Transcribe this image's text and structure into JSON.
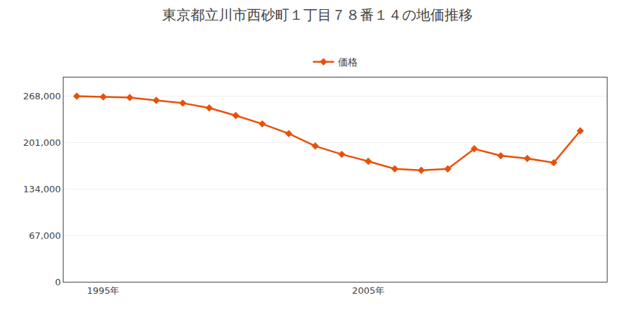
{
  "chart_data": {
    "type": "line",
    "title": "東京都立川市西砂町１丁目７８番１４の地価推移",
    "x": [
      1994,
      1995,
      1996,
      1997,
      1998,
      1999,
      2000,
      2001,
      2002,
      2003,
      2004,
      2005,
      2006,
      2007,
      2008,
      2009,
      2010,
      2011,
      2012,
      2013
    ],
    "series": [
      {
        "name": "価格",
        "color": "#e8500a",
        "marker": "diamond",
        "values": [
          268000,
          267000,
          266000,
          262000,
          258000,
          251000,
          240000,
          228000,
          214000,
          196000,
          184000,
          174000,
          163000,
          161000,
          163000,
          192000,
          182000,
          178000,
          172000,
          218000
        ]
      }
    ],
    "xlim": [
      1993.5,
      2014.0
    ],
    "xticks": [
      {
        "value": 1995,
        "label": "1995年"
      },
      {
        "value": 2005,
        "label": "2005年"
      }
    ],
    "ylim": [
      0,
      295000
    ],
    "yticks": [
      0,
      {
        "value": 67000,
        "label": "67,000"
      },
      {
        "value": 134000,
        "label": "134,000"
      },
      {
        "value": 201000,
        "label": "201,000"
      },
      {
        "value": 268000,
        "label": "268,000"
      }
    ],
    "grid": "y",
    "legend": "top"
  }
}
